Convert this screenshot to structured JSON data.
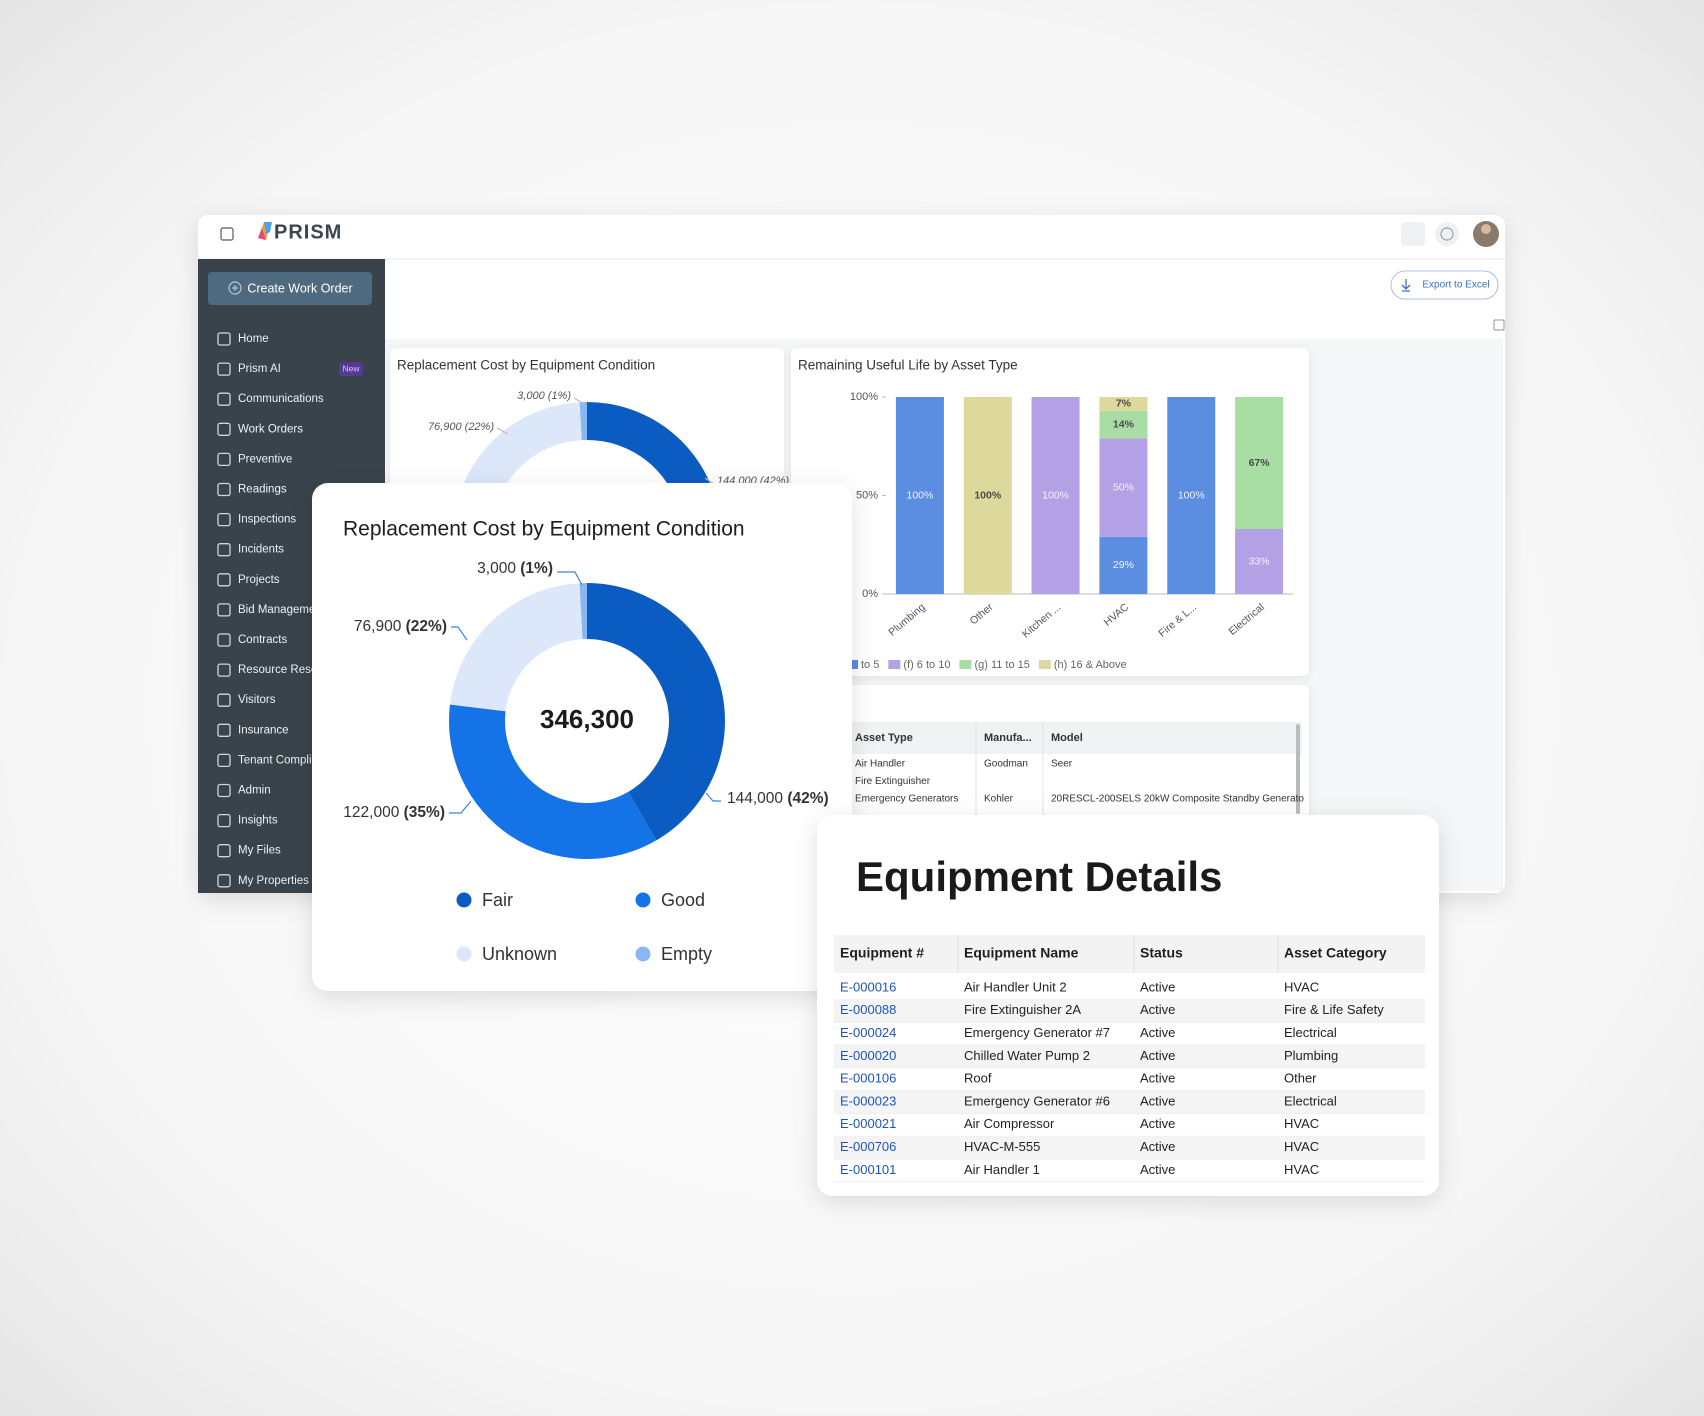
{
  "app": {
    "logo": "PRISM",
    "create_button": "Create Work Order",
    "export_button": "Export to Excel",
    "nav": [
      {
        "label": "Home"
      },
      {
        "label": "Prism AI",
        "badge": "New"
      },
      {
        "label": "Communications"
      },
      {
        "label": "Work Orders"
      },
      {
        "label": "Preventive"
      },
      {
        "label": "Readings"
      },
      {
        "label": "Inspections"
      },
      {
        "label": "Incidents"
      },
      {
        "label": "Projects"
      },
      {
        "label": "Bid Manageme"
      },
      {
        "label": "Contracts"
      },
      {
        "label": "Resource Rese"
      },
      {
        "label": "Visitors"
      },
      {
        "label": "Insurance"
      },
      {
        "label": "Tenant Compli"
      },
      {
        "label": "Admin"
      },
      {
        "label": "Insights"
      },
      {
        "label": "My Files"
      },
      {
        "label": "My Properties"
      }
    ]
  },
  "chart_data": [
    {
      "type": "donut",
      "title": "Replacement Cost by Equipment Condition",
      "center_label": "346,300",
      "categories": [
        "Fair",
        "Good",
        "Unknown",
        "Empty"
      ],
      "values": [
        144000,
        122000,
        76900,
        3000
      ],
      "value_labels": [
        "144,000",
        "122,000",
        "76,900",
        "3,000"
      ],
      "percent_labels": [
        "(42%)",
        "(35%)",
        "(22%)",
        "(1%)"
      ],
      "colors": [
        "#0b5cc2",
        "#1473e6",
        "#dce8fa",
        "#8ab6f2"
      ]
    },
    {
      "type": "stacked_bar",
      "title": "Remaining Useful Life by Asset Type",
      "categories": [
        "Plumbing",
        "Other",
        "Kitchen ...",
        "HVAC",
        "Fire & L...",
        "Electrical"
      ],
      "ylim": [
        0,
        100
      ],
      "yticks": [
        {
          "value": 0,
          "label": "0%"
        },
        {
          "value": 50,
          "label": "50%"
        },
        {
          "value": 100,
          "label": "100%"
        }
      ],
      "series": [
        {
          "name": "to 5",
          "color": "#5b8de0",
          "values": [
            100,
            null,
            null,
            29,
            100,
            null
          ],
          "value_labels": [
            "100%",
            null,
            null,
            "29%",
            "100%",
            null
          ]
        },
        {
          "name": "(f) 6 to 10",
          "color": "#b3a1e6",
          "values": [
            null,
            null,
            100,
            50,
            null,
            33
          ],
          "value_labels": [
            null,
            null,
            "100%",
            "50%",
            null,
            "33%"
          ]
        },
        {
          "name": "(g) 11 to 15",
          "color": "#a8dea4",
          "values": [
            null,
            null,
            null,
            14,
            null,
            67
          ],
          "value_labels": [
            null,
            null,
            null,
            "14%",
            null,
            "67%"
          ]
        },
        {
          "name": "(h) 16 & Above",
          "color": "#ddd89b",
          "values": [
            null,
            100,
            null,
            7,
            null,
            null
          ],
          "value_labels": [
            null,
            "100%",
            null,
            "7%",
            null,
            null
          ]
        }
      ]
    }
  ],
  "asset_table": {
    "columns": [
      "Asset Type",
      "Manufa...",
      "Model"
    ],
    "rows": [
      [
        "Air Handler",
        "Goodman",
        "Seer"
      ],
      [
        "Fire Extinguisher",
        null,
        null
      ],
      [
        "Emergency Generators",
        "Kohler",
        "20RESCL-200SELS 20kW Composite Standby Generato"
      ]
    ]
  },
  "equipment_table": {
    "title": "Equipment Details",
    "columns": [
      "Equipment #",
      "Equipment Name",
      "Status",
      "Asset Category"
    ],
    "rows": [
      [
        "E-000016",
        "Air Handler Unit 2",
        "Active",
        "HVAC"
      ],
      [
        "E-000088",
        "Fire Extinguisher 2A",
        "Active",
        "Fire & Life Safety"
      ],
      [
        "E-000024",
        "Emergency Generator #7",
        "Active",
        "Electrical"
      ],
      [
        "E-000020",
        "Chilled Water Pump 2",
        "Active",
        "Plumbing"
      ],
      [
        "E-000106",
        "Roof",
        "Active",
        "Other"
      ],
      [
        "E-000023",
        "Emergency Generator #6",
        "Active",
        "Electrical"
      ],
      [
        "E-000021",
        "Air Compressor",
        "Active",
        "HVAC"
      ],
      [
        "E-000706",
        "HVAC-M-555",
        "Active",
        "HVAC"
      ],
      [
        "E-000101",
        "Air Handler 1",
        "Active",
        "HVAC"
      ]
    ]
  }
}
